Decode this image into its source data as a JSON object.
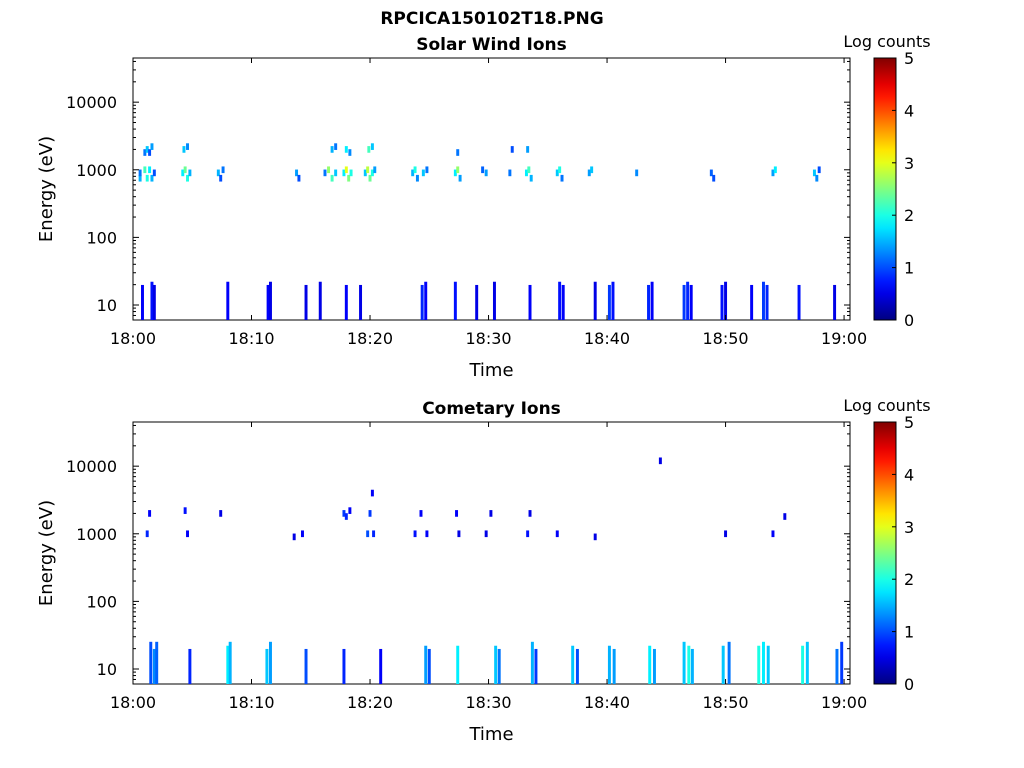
{
  "figure_title": "RPCICA150102T18.PNG",
  "chart_data": [
    {
      "type": "heatmap",
      "title": "Solar Wind Ions",
      "xlabel": "Time",
      "ylabel": "Energy (eV)",
      "xticks": [
        "18:00",
        "18:10",
        "18:20",
        "18:30",
        "18:40",
        "18:50",
        "19:00"
      ],
      "xlim_minutes": [
        0,
        60.5
      ],
      "yticks": [
        "10",
        "100",
        "1000",
        "10000"
      ],
      "ylim": [
        6,
        45000
      ],
      "y_scale": "log",
      "colorbar": {
        "label": "Log counts",
        "ticks": [
          "0",
          "1",
          "2",
          "3",
          "4",
          "5"
        ],
        "range": [
          0,
          5
        ],
        "colormap": "jet"
      },
      "cells": [
        [
          0.6,
          750,
          1.5
        ],
        [
          0.6,
          900,
          1.2
        ],
        [
          1.0,
          1000,
          2.2
        ],
        [
          1.2,
          750,
          2.0
        ],
        [
          1.4,
          1000,
          1.8
        ],
        [
          1.6,
          750,
          1.5
        ],
        [
          1.0,
          1800,
          1.2
        ],
        [
          1.2,
          2000,
          1.6
        ],
        [
          1.4,
          1800,
          1.0
        ],
        [
          1.6,
          2200,
          1.4
        ],
        [
          1.8,
          900,
          1.0
        ],
        [
          4.2,
          900,
          1.8
        ],
        [
          4.4,
          1000,
          2.4
        ],
        [
          4.6,
          750,
          2.0
        ],
        [
          4.8,
          900,
          1.5
        ],
        [
          4.3,
          2000,
          1.6
        ],
        [
          4.6,
          2200,
          1.3
        ],
        [
          7.2,
          900,
          1.5
        ],
        [
          7.4,
          750,
          1.0
        ],
        [
          7.6,
          1000,
          1.2
        ],
        [
          13.8,
          900,
          1.4
        ],
        [
          14.0,
          750,
          1.0
        ],
        [
          16.2,
          900,
          1.2
        ],
        [
          16.5,
          1000,
          2.6
        ],
        [
          16.8,
          750,
          2.2
        ],
        [
          17.1,
          900,
          1.6
        ],
        [
          16.8,
          2000,
          1.5
        ],
        [
          17.1,
          2200,
          1.2
        ],
        [
          17.8,
          900,
          1.8
        ],
        [
          18.0,
          1000,
          3.0
        ],
        [
          18.2,
          750,
          2.5
        ],
        [
          18.4,
          900,
          2.0
        ],
        [
          18.0,
          2000,
          1.8
        ],
        [
          18.3,
          1800,
          1.3
        ],
        [
          19.6,
          900,
          1.6
        ],
        [
          19.8,
          1000,
          2.8
        ],
        [
          20.0,
          750,
          2.4
        ],
        [
          20.2,
          900,
          2.0
        ],
        [
          20.4,
          1000,
          1.4
        ],
        [
          19.9,
          2000,
          2.2
        ],
        [
          20.2,
          2200,
          1.6
        ],
        [
          23.6,
          900,
          1.5
        ],
        [
          23.8,
          1000,
          2.0
        ],
        [
          24.0,
          750,
          1.3
        ],
        [
          24.5,
          900,
          1.6
        ],
        [
          24.8,
          1000,
          1.2
        ],
        [
          27.2,
          900,
          1.8
        ],
        [
          27.4,
          1000,
          2.6
        ],
        [
          27.6,
          750,
          1.4
        ],
        [
          27.4,
          1800,
          1.2
        ],
        [
          29.5,
          1000,
          1.1
        ],
        [
          29.8,
          900,
          1.4
        ],
        [
          31.8,
          900,
          1.2
        ],
        [
          32.0,
          2000,
          1.0
        ],
        [
          33.2,
          900,
          1.8
        ],
        [
          33.4,
          1000,
          2.2
        ],
        [
          33.6,
          750,
          1.5
        ],
        [
          33.3,
          2000,
          1.4
        ],
        [
          35.8,
          900,
          1.6
        ],
        [
          36.0,
          1000,
          2.0
        ],
        [
          36.2,
          750,
          1.2
        ],
        [
          38.5,
          900,
          1.4
        ],
        [
          38.7,
          1000,
          1.6
        ],
        [
          42.5,
          900,
          1.3
        ],
        [
          48.8,
          900,
          1.1
        ],
        [
          49.0,
          750,
          1.0
        ],
        [
          54.0,
          900,
          1.4
        ],
        [
          54.2,
          1000,
          1.8
        ],
        [
          57.5,
          900,
          1.6
        ],
        [
          57.7,
          750,
          1.3
        ],
        [
          57.9,
          1000,
          1.0
        ]
      ],
      "low_energy_cells": [
        [
          0.8,
          10,
          0.6
        ],
        [
          1.6,
          12,
          0.7
        ],
        [
          1.8,
          10,
          0.5
        ],
        [
          8.0,
          12,
          0.6
        ],
        [
          11.4,
          10,
          0.6
        ],
        [
          11.6,
          12,
          0.5
        ],
        [
          14.6,
          10,
          0.5
        ],
        [
          15.8,
          12,
          0.5
        ],
        [
          18.0,
          10,
          0.6
        ],
        [
          19.2,
          10,
          0.5
        ],
        [
          24.4,
          10,
          0.8
        ],
        [
          24.7,
          12,
          0.6
        ],
        [
          27.2,
          12,
          0.7
        ],
        [
          29.0,
          10,
          0.5
        ],
        [
          30.5,
          12,
          0.5
        ],
        [
          33.5,
          10,
          0.6
        ],
        [
          36.0,
          12,
          0.7
        ],
        [
          36.3,
          10,
          0.6
        ],
        [
          39.0,
          12,
          0.5
        ],
        [
          40.2,
          10,
          0.9
        ],
        [
          40.5,
          12,
          0.7
        ],
        [
          43.5,
          10,
          0.8
        ],
        [
          43.8,
          12,
          0.6
        ],
        [
          46.5,
          10,
          0.9
        ],
        [
          46.8,
          12,
          0.8
        ],
        [
          47.1,
          10,
          0.6
        ],
        [
          49.7,
          10,
          0.7
        ],
        [
          50.0,
          12,
          0.5
        ],
        [
          52.2,
          10,
          0.6
        ],
        [
          53.2,
          12,
          0.9
        ],
        [
          53.5,
          10,
          0.8
        ],
        [
          56.2,
          10,
          0.7
        ],
        [
          59.2,
          10,
          0.5
        ]
      ]
    },
    {
      "type": "heatmap",
      "title": "Cometary Ions",
      "xlabel": "Time",
      "ylabel": "Energy (eV)",
      "xticks": [
        "18:00",
        "18:10",
        "18:20",
        "18:30",
        "18:40",
        "18:50",
        "19:00"
      ],
      "xlim_minutes": [
        0,
        60.5
      ],
      "yticks": [
        "10",
        "100",
        "1000",
        "10000"
      ],
      "ylim": [
        6,
        45000
      ],
      "y_scale": "log",
      "colorbar": {
        "label": "Log counts",
        "ticks": [
          "0",
          "1",
          "2",
          "3",
          "4",
          "5"
        ],
        "range": [
          0,
          5
        ],
        "colormap": "jet"
      },
      "cells": [
        [
          1.2,
          1000,
          0.8
        ],
        [
          1.4,
          2000,
          0.6
        ],
        [
          4.4,
          2200,
          0.7
        ],
        [
          4.6,
          1000,
          0.6
        ],
        [
          7.4,
          2000,
          0.5
        ],
        [
          13.6,
          900,
          0.5
        ],
        [
          14.3,
          1000,
          0.6
        ],
        [
          17.8,
          2000,
          0.9
        ],
        [
          18.0,
          1800,
          0.8
        ],
        [
          18.3,
          2200,
          0.6
        ],
        [
          19.8,
          1000,
          1.0
        ],
        [
          20.0,
          2000,
          0.9
        ],
        [
          20.3,
          1000,
          0.8
        ],
        [
          20.2,
          4000,
          0.6
        ],
        [
          23.8,
          1000,
          0.7
        ],
        [
          24.3,
          2000,
          0.6
        ],
        [
          24.8,
          1000,
          0.6
        ],
        [
          27.3,
          2000,
          0.6
        ],
        [
          27.5,
          1000,
          0.5
        ],
        [
          29.8,
          1000,
          0.5
        ],
        [
          30.2,
          2000,
          0.5
        ],
        [
          33.3,
          1000,
          0.7
        ],
        [
          33.5,
          2000,
          0.5
        ],
        [
          35.8,
          1000,
          0.6
        ],
        [
          39.0,
          900,
          0.5
        ],
        [
          44.5,
          12000,
          0.5
        ],
        [
          50.0,
          1000,
          0.5
        ],
        [
          54.0,
          1000,
          0.6
        ],
        [
          55.0,
          1800,
          0.5
        ]
      ],
      "low_energy_cells": [
        [
          1.5,
          15,
          1.0
        ],
        [
          1.8,
          10,
          1.3
        ],
        [
          2.0,
          15,
          1.1
        ],
        [
          4.8,
          10,
          0.8
        ],
        [
          8.0,
          12,
          1.8
        ],
        [
          8.2,
          15,
          1.5
        ],
        [
          11.3,
          10,
          1.6
        ],
        [
          11.6,
          15,
          1.4
        ],
        [
          14.6,
          10,
          1.0
        ],
        [
          17.8,
          10,
          0.8
        ],
        [
          20.9,
          10,
          0.6
        ],
        [
          24.7,
          12,
          1.4
        ],
        [
          25.0,
          10,
          1.0
        ],
        [
          27.4,
          12,
          1.8
        ],
        [
          30.6,
          12,
          1.6
        ],
        [
          30.9,
          10,
          1.2
        ],
        [
          33.7,
          15,
          1.5
        ],
        [
          34.0,
          10,
          0.9
        ],
        [
          37.1,
          12,
          1.6
        ],
        [
          37.5,
          10,
          1.0
        ],
        [
          40.2,
          12,
          1.5
        ],
        [
          40.6,
          10,
          1.4
        ],
        [
          43.6,
          12,
          1.8
        ],
        [
          44.0,
          10,
          1.4
        ],
        [
          46.5,
          15,
          1.6
        ],
        [
          46.9,
          12,
          2.0
        ],
        [
          47.2,
          10,
          1.5
        ],
        [
          49.8,
          12,
          1.6
        ],
        [
          50.3,
          15,
          1.2
        ],
        [
          52.8,
          12,
          2.0
        ],
        [
          53.2,
          15,
          1.8
        ],
        [
          53.6,
          12,
          1.6
        ],
        [
          56.5,
          12,
          2.0
        ],
        [
          56.9,
          15,
          1.6
        ],
        [
          59.4,
          10,
          1.2
        ],
        [
          59.8,
          15,
          0.9
        ]
      ]
    }
  ]
}
